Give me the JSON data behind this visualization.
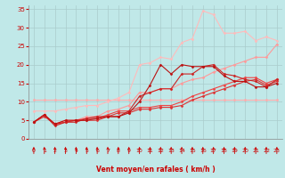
{
  "background_color": "#c0e8e8",
  "grid_color": "#aacccc",
  "xlabel": "Vent moyen/en rafales ( km/h )",
  "xlim": [
    -0.5,
    23.5
  ],
  "ylim": [
    0,
    36
  ],
  "xticks": [
    0,
    1,
    2,
    3,
    4,
    5,
    6,
    7,
    8,
    9,
    10,
    11,
    12,
    13,
    14,
    15,
    16,
    17,
    18,
    19,
    20,
    21,
    22,
    23
  ],
  "yticks": [
    0,
    5,
    10,
    15,
    20,
    25,
    30,
    35
  ],
  "series": [
    {
      "x": [
        0,
        1,
        2,
        3,
        4,
        5,
        6,
        7,
        8,
        9,
        10,
        11,
        12,
        13,
        14,
        15,
        16,
        17,
        18,
        19,
        20,
        21,
        22,
        23
      ],
      "y": [
        10.5,
        10.5,
        10.5,
        10.5,
        10.5,
        10.5,
        10.5,
        10.5,
        10.5,
        10.5,
        10.5,
        10.5,
        10.5,
        10.5,
        10.5,
        10.5,
        10.5,
        10.5,
        10.5,
        10.5,
        10.5,
        10.5,
        10.5,
        10.5
      ],
      "color": "#ffaaaa",
      "marker": "D",
      "markersize": 1.5,
      "linewidth": 0.8
    },
    {
      "x": [
        0,
        1,
        2,
        3,
        4,
        5,
        6,
        7,
        8,
        9,
        10,
        11,
        12,
        13,
        14,
        15,
        16,
        17,
        18,
        19,
        20,
        21,
        22,
        23
      ],
      "y": [
        7.5,
        7.5,
        7.5,
        8.0,
        8.5,
        9.0,
        9.0,
        10.0,
        11.0,
        12.5,
        20.0,
        20.5,
        22.0,
        21.5,
        26.0,
        27.0,
        34.5,
        33.5,
        28.5,
        28.5,
        29.0,
        26.5,
        27.5,
        26.5
      ],
      "color": "#ffbbbb",
      "marker": "D",
      "markersize": 1.5,
      "linewidth": 0.8
    },
    {
      "x": [
        0,
        1,
        2,
        3,
        4,
        5,
        6,
        7,
        8,
        9,
        10,
        11,
        12,
        13,
        14,
        15,
        16,
        17,
        18,
        19,
        20,
        21,
        22,
        23
      ],
      "y": [
        4.5,
        6.5,
        4.0,
        5.0,
        5.0,
        6.0,
        6.0,
        7.5,
        8.0,
        9.0,
        12.5,
        12.5,
        13.5,
        13.5,
        15.0,
        16.0,
        16.5,
        18.0,
        19.0,
        20.0,
        21.0,
        22.0,
        22.0,
        25.5
      ],
      "color": "#ff9999",
      "marker": "D",
      "markersize": 1.5,
      "linewidth": 0.8
    },
    {
      "x": [
        0,
        1,
        2,
        3,
        4,
        5,
        6,
        7,
        8,
        9,
        10,
        11,
        12,
        13,
        14,
        15,
        16,
        17,
        18,
        19,
        20,
        21,
        22,
        23
      ],
      "y": [
        4.5,
        6.5,
        4.0,
        4.5,
        5.0,
        5.5,
        5.5,
        6.5,
        7.5,
        7.5,
        8.5,
        8.5,
        9.0,
        9.0,
        10.0,
        11.5,
        12.5,
        13.5,
        14.5,
        15.5,
        16.5,
        16.5,
        15.0,
        16.0
      ],
      "color": "#ee4444",
      "marker": "D",
      "markersize": 1.5,
      "linewidth": 0.8
    },
    {
      "x": [
        0,
        1,
        2,
        3,
        4,
        5,
        6,
        7,
        8,
        9,
        10,
        11,
        12,
        13,
        14,
        15,
        16,
        17,
        18,
        19,
        20,
        21,
        22,
        23
      ],
      "y": [
        4.5,
        6.0,
        4.0,
        4.5,
        5.0,
        5.0,
        5.0,
        6.0,
        7.0,
        7.0,
        8.0,
        8.0,
        8.5,
        8.5,
        9.0,
        10.5,
        11.5,
        12.5,
        13.5,
        14.5,
        15.5,
        16.0,
        14.5,
        15.5
      ],
      "color": "#dd3333",
      "marker": "D",
      "markersize": 1.5,
      "linewidth": 0.8
    },
    {
      "x": [
        0,
        1,
        2,
        3,
        4,
        5,
        6,
        7,
        8,
        9,
        10,
        11,
        12,
        13,
        14,
        15,
        16,
        17,
        18,
        19,
        20,
        21,
        22,
        23
      ],
      "y": [
        4.5,
        6.5,
        3.5,
        4.5,
        4.5,
        5.5,
        6.0,
        6.0,
        6.0,
        7.5,
        11.5,
        12.5,
        13.5,
        13.5,
        17.5,
        17.5,
        19.5,
        20.0,
        17.5,
        17.0,
        16.0,
        15.5,
        14.0,
        16.0
      ],
      "color": "#cc2222",
      "marker": "D",
      "markersize": 1.5,
      "linewidth": 0.8
    },
    {
      "x": [
        0,
        1,
        2,
        3,
        4,
        5,
        6,
        7,
        8,
        9,
        10,
        11,
        12,
        13,
        14,
        15,
        16,
        17,
        18,
        19,
        20,
        21,
        22,
        23
      ],
      "y": [
        4.5,
        6.5,
        4.0,
        5.0,
        5.0,
        5.0,
        5.5,
        6.0,
        6.0,
        7.0,
        10.0,
        14.5,
        20.0,
        17.5,
        20.0,
        19.5,
        19.5,
        19.5,
        17.0,
        15.5,
        15.5,
        14.0,
        14.0,
        15.0
      ],
      "color": "#bb1111",
      "marker": "D",
      "markersize": 1.5,
      "linewidth": 0.8
    }
  ],
  "label_color": "#cc0000",
  "tick_color": "#cc0000",
  "spine_color": "#888888"
}
